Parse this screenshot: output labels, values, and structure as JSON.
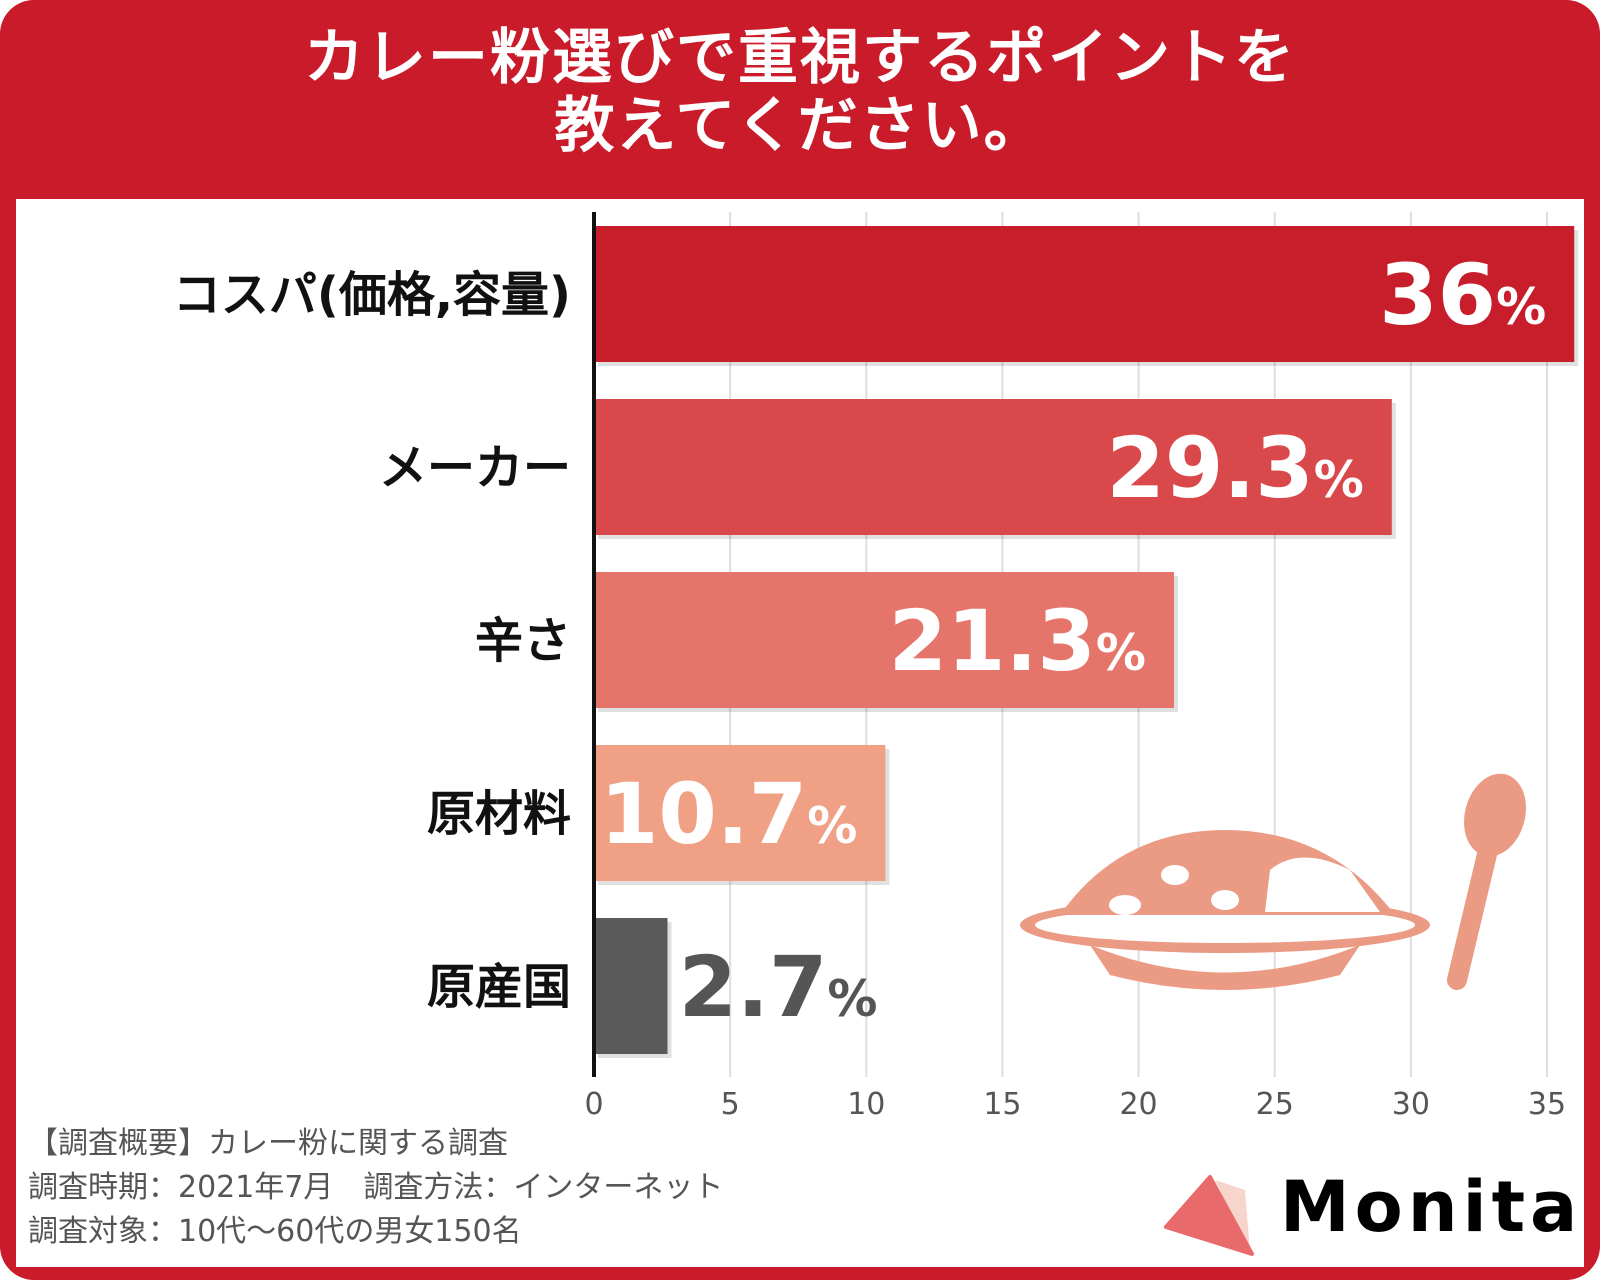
{
  "title_lines": [
    "カレー粉選びで重視するポイントを",
    "教えてください。"
  ],
  "colors": {
    "frame": "#c91b2a",
    "bars": [
      "#c81e2c",
      "#d9484a",
      "#e5746a",
      "#efa085",
      "#5a5a5a"
    ],
    "illustration": "#eb9a84"
  },
  "chart_data": {
    "type": "bar",
    "orientation": "horizontal",
    "title": "カレー粉選びで重視するポイントを教えてください。",
    "categories": [
      "コスパ(価格,容量)",
      "メーカー",
      "辛さ",
      "原材料",
      "原産国"
    ],
    "values": [
      36,
      29.3,
      21.3,
      10.7,
      2.7
    ],
    "value_labels": [
      "36",
      "29.3",
      "21.3",
      "10.7",
      "2.7"
    ],
    "unit": "%",
    "xlim": [
      0,
      35
    ],
    "xticks": [
      "0",
      "5",
      "10",
      "15",
      "20",
      "25",
      "30",
      "35"
    ],
    "grid": true,
    "xlabel": "",
    "ylabel": ""
  },
  "footer": {
    "lines": [
      "【調査概要】カレー粉に関する調査",
      "調査時期：2021年7月　調査方法：インターネット",
      "調査対象：10代〜60代の男女150名"
    ]
  },
  "logo": {
    "text": "Monita"
  }
}
